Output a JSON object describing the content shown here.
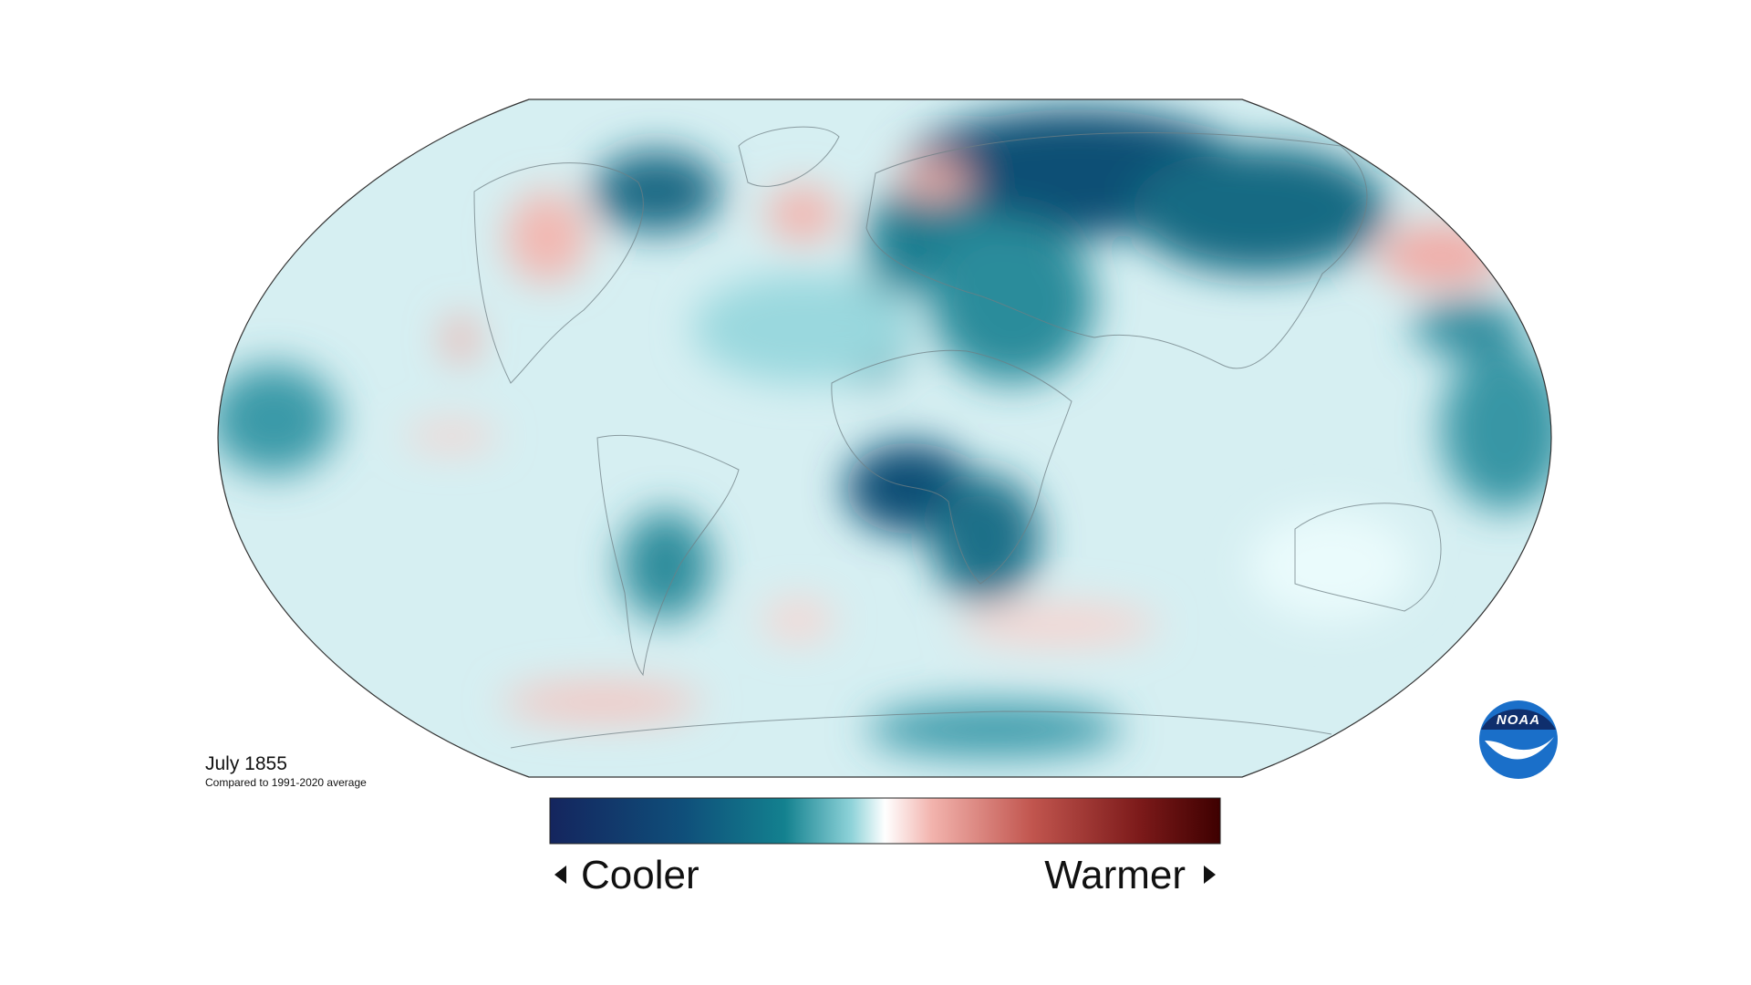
{
  "map": {
    "date": "July 1855",
    "subtitle": "Compared to 1991-2020 average"
  },
  "legend": {
    "low": "Cooler",
    "high": "Warmer"
  },
  "logo": {
    "text": "NOAA"
  }
}
